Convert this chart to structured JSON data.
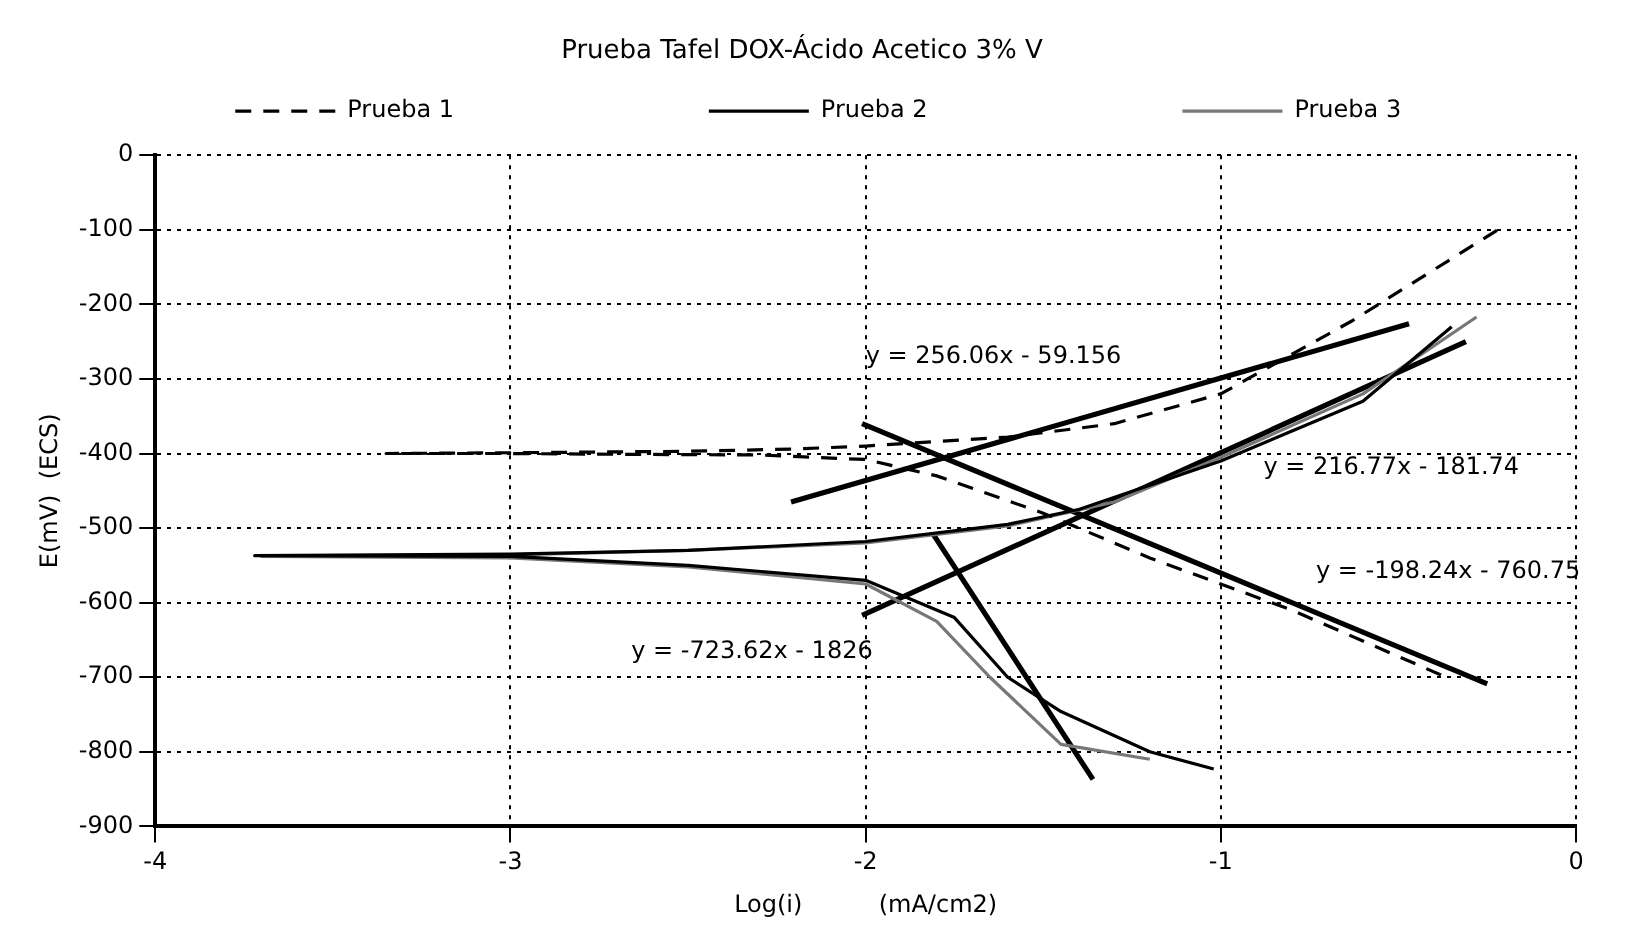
{
  "chart_data": {
    "type": "line",
    "title": "Prueba Tafel DOX-Ácido Acetico 3% V",
    "xlabel": "Log(i)          (mA/cm2)",
    "ylabel": "E(mV)  (ECS)",
    "series": [
      {
        "name": "Prueba 1",
        "color": "#000000",
        "line_style": "dashed",
        "x": [
          -0.38,
          -0.8,
          -1.2,
          -1.5,
          -1.8,
          -2.0,
          -2.3,
          -2.7,
          -3.0,
          -3.35,
          -3.0,
          -2.5,
          -2.2,
          -2.0,
          -1.6,
          -1.3,
          -1.0,
          -0.63,
          -0.22
        ],
        "values": [
          -697,
          -610,
          -540,
          -480,
          -430,
          -408,
          -402,
          -401,
          -400,
          -400,
          -399,
          -397,
          -394,
          -390,
          -378,
          -360,
          -320,
          -222,
          -100
        ]
      },
      {
        "name": "Prueba 2",
        "color": "#000000",
        "line_style": "solid",
        "x": [
          -1.02,
          -1.2,
          -1.45,
          -1.6,
          -1.75,
          -2.0,
          -2.5,
          -3.0,
          -3.72,
          -3.0,
          -2.5,
          -2.0,
          -1.6,
          -1.4,
          -1.0,
          -0.6,
          -0.35
        ],
        "values": [
          -823,
          -800,
          -746,
          -700,
          -620,
          -570,
          -550,
          -538,
          -537,
          -535,
          -530,
          -518,
          -495,
          -475,
          -410,
          -330,
          -230
        ]
      },
      {
        "name": "Prueba 3",
        "color": "#777777",
        "line_style": "solid",
        "x": [
          -1.2,
          -1.45,
          -1.65,
          -1.8,
          -2.0,
          -2.5,
          -3.0,
          -3.7,
          -3.0,
          -2.5,
          -2.0,
          -1.6,
          -1.3,
          -1.0,
          -0.6,
          -0.28
        ],
        "values": [
          -810,
          -790,
          -700,
          -625,
          -575,
          -552,
          -540,
          -538,
          -536,
          -530,
          -520,
          -497,
          -465,
          -405,
          -320,
          -217
        ]
      },
      {
        "type": "line",
        "color": "#000000",
        "x": [
          -2.21,
          -0.47
        ],
        "values": [
          -465,
          -226
        ]
      },
      {
        "type": "line",
        "color": "#000000",
        "x": [
          -2.01,
          -0.31
        ],
        "values": [
          -617,
          -250
        ]
      },
      {
        "type": "line",
        "color": "#000000",
        "x": [
          -2.01,
          -0.25
        ],
        "values": [
          -360,
          -709
        ]
      },
      {
        "type": "line",
        "color": "#000000",
        "x": [
          -1.81,
          -1.36
        ],
        "values": [
          -508,
          -837
        ]
      }
    ],
    "xlim": [
      -4,
      0
    ],
    "xticks": [
      -4,
      -3,
      -2,
      -1,
      0
    ],
    "ylim": [
      -900,
      0
    ],
    "yticks": [
      -900,
      -800,
      -700,
      -600,
      -500,
      -400,
      -300,
      -200,
      -100,
      0
    ],
    "grid": true,
    "legend": "top",
    "marker": "none",
    "annotations": [
      "y = 256.06x - 59.156",
      "y = 216.77x - 181.74",
      "y = -198.24x - 760.75",
      "y = -723.62x - 1826"
    ]
  }
}
